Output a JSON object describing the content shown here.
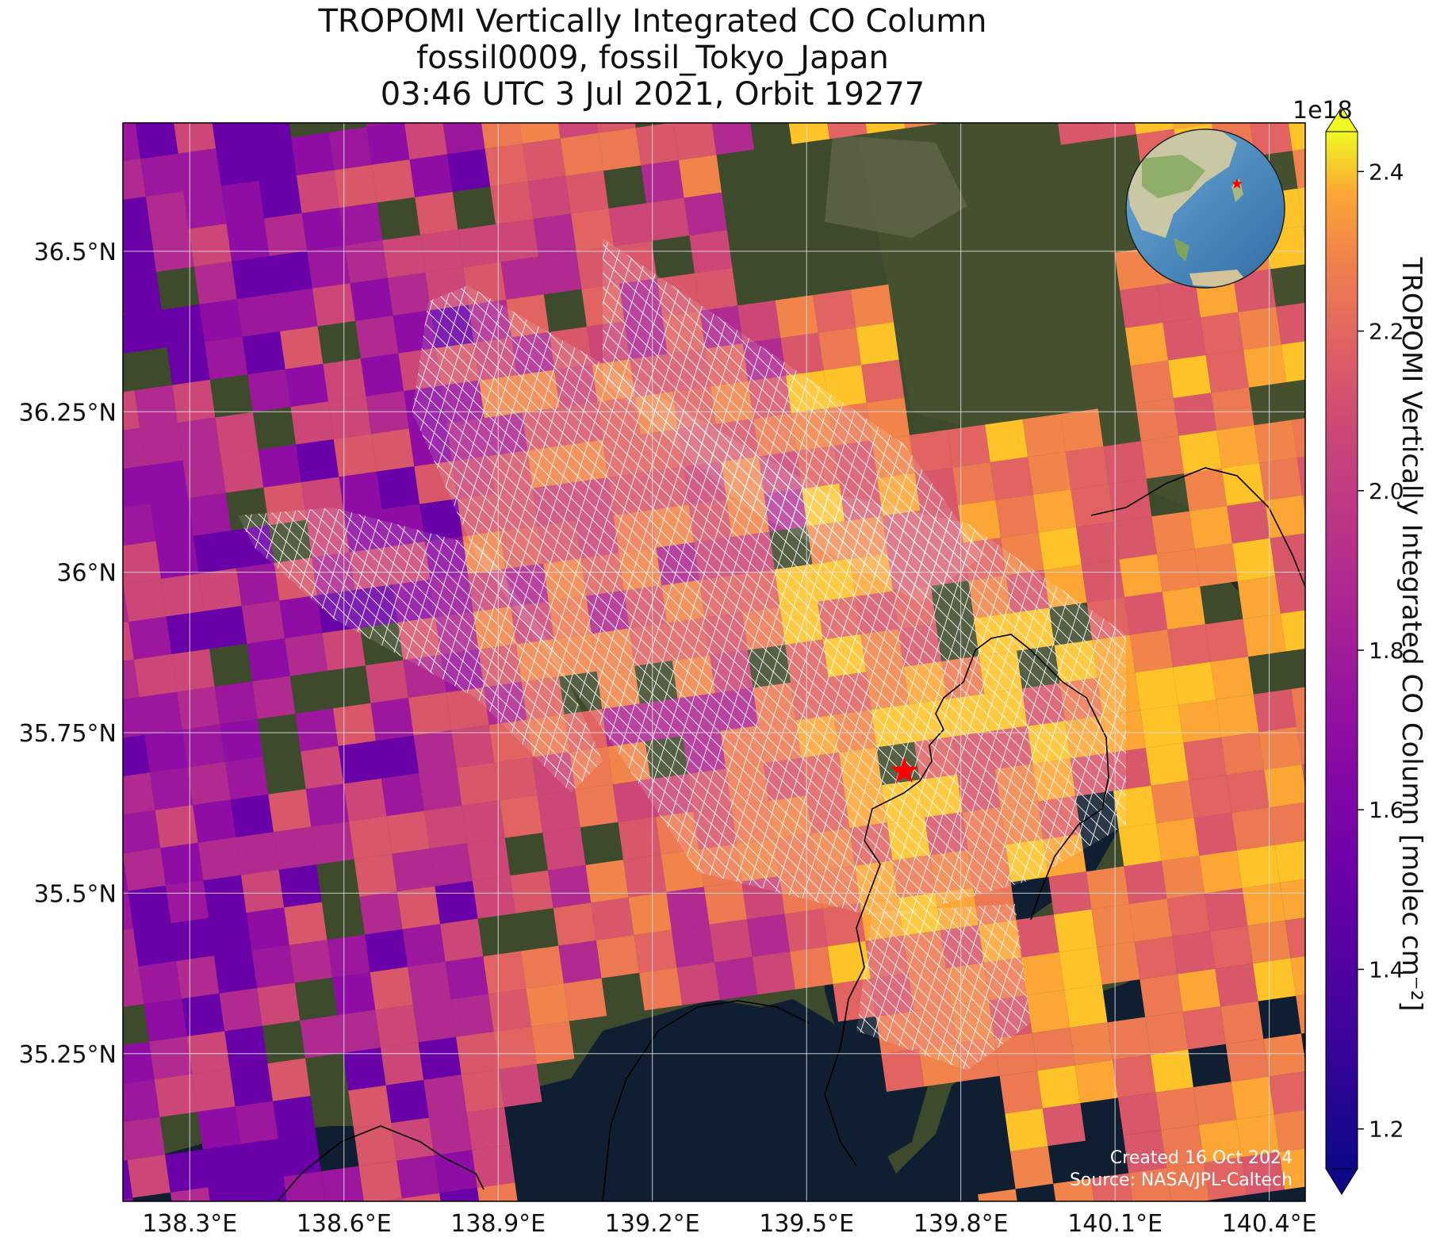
{
  "title": {
    "line1": "TROPOMI Vertically Integrated CO Column",
    "line2": "fossil0009, fossil_Tokyo_Japan",
    "line3": "03:46 UTC 3 Jul 2021, Orbit 19277"
  },
  "map": {
    "lon_range": [
      138.17,
      140.47
    ],
    "lat_range": [
      35.02,
      36.7
    ],
    "x_ticks": [
      {
        "value": 138.3,
        "label": "138.3°E"
      },
      {
        "value": 138.6,
        "label": "138.6°E"
      },
      {
        "value": 138.9,
        "label": "138.9°E"
      },
      {
        "value": 139.2,
        "label": "139.2°E"
      },
      {
        "value": 139.5,
        "label": "139.5°E"
      },
      {
        "value": 139.8,
        "label": "139.8°E"
      },
      {
        "value": 140.1,
        "label": "140.1°E"
      },
      {
        "value": 140.4,
        "label": "140.4°E"
      }
    ],
    "y_ticks": [
      {
        "value": 36.5,
        "label": "36.5°N"
      },
      {
        "value": 36.25,
        "label": "36.25°N"
      },
      {
        "value": 36.0,
        "label": "36°N"
      },
      {
        "value": 35.75,
        "label": "35.75°N"
      },
      {
        "value": 35.5,
        "label": "35.5°N"
      },
      {
        "value": 35.25,
        "label": "35.25°N"
      }
    ],
    "gridlines": true,
    "source_marker": {
      "lon": 139.69,
      "lat": 35.69,
      "symbol": "star",
      "color": "#ff0000"
    },
    "colors": {
      "land": "#3e4a2c",
      "water": "#0f1e30",
      "grid": "#dddddd",
      "hatch": "#ffffff"
    }
  },
  "colorbar": {
    "label": "TROPOMI Vertically Integrated CO Column [molec cm⁻²]",
    "exponent": "1e18",
    "range": [
      1.15,
      2.45
    ],
    "colormap": "plasma",
    "extend": "both",
    "ticks": [
      {
        "value": 1.2,
        "label": "1.2"
      },
      {
        "value": 1.4,
        "label": "1.4"
      },
      {
        "value": 1.6,
        "label": "1.6"
      },
      {
        "value": 1.8,
        "label": "1.8"
      },
      {
        "value": 2.0,
        "label": "2.0"
      },
      {
        "value": 2.2,
        "label": "2.2"
      },
      {
        "value": 2.4,
        "label": "2.4"
      }
    ]
  },
  "inset_globe": {
    "marker_color": "#ff0000"
  },
  "credits": {
    "created": "Created 16 Oct 2024",
    "source": "Source: NASA/JPL-Caltech"
  }
}
